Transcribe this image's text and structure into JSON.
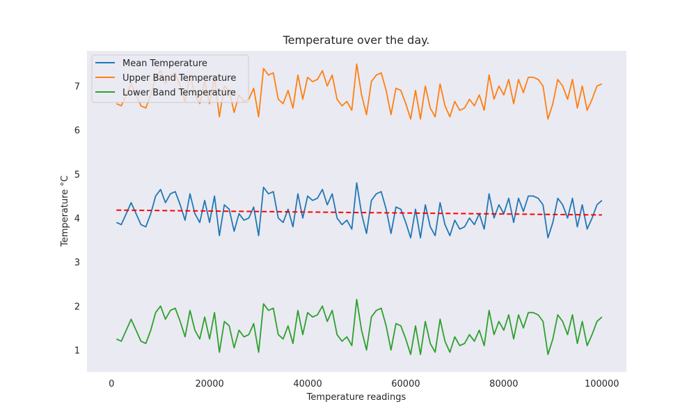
{
  "chart_data": {
    "type": "line",
    "title": "Temperature over the day.",
    "xlabel": "Temperature readings",
    "ylabel": "Temperature °C",
    "xlim": [
      -5000,
      105000
    ],
    "ylim": [
      0.5,
      7.8
    ],
    "xticks": [
      0,
      20000,
      40000,
      60000,
      80000,
      100000
    ],
    "xtick_labels": [
      "0",
      "20000",
      "40000",
      "60000",
      "80000",
      "100000"
    ],
    "yticks": [
      1,
      2,
      3,
      4,
      5,
      6,
      7
    ],
    "ytick_labels": [
      "1",
      "2",
      "3",
      "4",
      "5",
      "6",
      "7"
    ],
    "grid": false,
    "legend_position": "top-left",
    "x": [
      1000,
      2000,
      3000,
      4000,
      5000,
      6000,
      7000,
      8000,
      9000,
      10000,
      11000,
      12000,
      13000,
      14000,
      15000,
      16000,
      17000,
      18000,
      19000,
      20000,
      21000,
      22000,
      23000,
      24000,
      25000,
      26000,
      27000,
      28000,
      29000,
      30000,
      31000,
      32000,
      33000,
      34000,
      35000,
      36000,
      37000,
      38000,
      39000,
      40000,
      41000,
      42000,
      43000,
      44000,
      45000,
      46000,
      47000,
      48000,
      49000,
      50000,
      51000,
      52000,
      53000,
      54000,
      55000,
      56000,
      57000,
      58000,
      59000,
      60000,
      61000,
      62000,
      63000,
      64000,
      65000,
      66000,
      67000,
      68000,
      69000,
      70000,
      71000,
      72000,
      73000,
      74000,
      75000,
      76000,
      77000,
      78000,
      79000,
      80000,
      81000,
      82000,
      83000,
      84000,
      85000,
      86000,
      87000,
      88000,
      89000,
      90000,
      91000,
      92000,
      93000,
      94000,
      95000,
      96000,
      97000,
      98000,
      99000,
      100000
    ],
    "series": [
      {
        "name": "Mean Temperature",
        "color": "#1f77b4",
        "values": [
          3.9,
          3.85,
          4.1,
          4.35,
          4.1,
          3.85,
          3.8,
          4.1,
          4.5,
          4.65,
          4.35,
          4.55,
          4.6,
          4.3,
          3.95,
          4.55,
          4.1,
          3.9,
          4.4,
          3.9,
          4.5,
          3.6,
          4.3,
          4.2,
          3.7,
          4.1,
          3.95,
          4.0,
          4.25,
          3.6,
          4.7,
          4.55,
          4.6,
          4.0,
          3.9,
          4.2,
          3.8,
          4.55,
          4.0,
          4.5,
          4.4,
          4.45,
          4.65,
          4.3,
          4.55,
          4.0,
          3.85,
          3.95,
          3.75,
          4.8,
          4.1,
          3.65,
          4.4,
          4.55,
          4.6,
          4.2,
          3.65,
          4.25,
          4.2,
          3.9,
          3.55,
          4.2,
          3.55,
          4.3,
          3.8,
          3.6,
          4.35,
          3.85,
          3.6,
          3.95,
          3.75,
          3.8,
          4.0,
          3.85,
          4.1,
          3.75,
          4.55,
          4.0,
          4.3,
          4.1,
          4.45,
          3.9,
          4.45,
          4.15,
          4.5,
          4.5,
          4.45,
          4.3,
          3.55,
          3.9,
          4.45,
          4.3,
          4.0,
          4.45,
          3.8,
          4.3,
          3.75,
          4.0,
          4.3,
          4.4
        ]
      },
      {
        "name": "Upper Band Temperature",
        "color": "#ff7f0e",
        "values": [
          6.6,
          6.55,
          6.8,
          7.05,
          6.8,
          6.55,
          6.5,
          6.8,
          7.2,
          7.35,
          7.05,
          7.25,
          7.3,
          7.0,
          6.65,
          7.25,
          6.8,
          6.6,
          7.1,
          6.6,
          7.2,
          6.3,
          7.0,
          6.9,
          6.4,
          6.8,
          6.65,
          6.7,
          6.95,
          6.3,
          7.4,
          7.25,
          7.3,
          6.7,
          6.6,
          6.9,
          6.5,
          7.25,
          6.7,
          7.2,
          7.1,
          7.15,
          7.35,
          7.0,
          7.25,
          6.7,
          6.55,
          6.65,
          6.45,
          7.5,
          6.8,
          6.35,
          7.1,
          7.25,
          7.3,
          6.9,
          6.35,
          6.95,
          6.9,
          6.6,
          6.25,
          6.9,
          6.25,
          7.0,
          6.5,
          6.3,
          7.05,
          6.55,
          6.3,
          6.65,
          6.45,
          6.5,
          6.7,
          6.55,
          6.8,
          6.45,
          7.25,
          6.7,
          7.0,
          6.8,
          7.15,
          6.6,
          7.15,
          6.85,
          7.2,
          7.2,
          7.15,
          7.0,
          6.25,
          6.6,
          7.15,
          7.0,
          6.7,
          7.15,
          6.5,
          7.0,
          6.45,
          6.7,
          7.0,
          7.05
        ]
      },
      {
        "name": "Lower Band Temperature",
        "color": "#2ca02c",
        "values": [
          1.25,
          1.2,
          1.45,
          1.7,
          1.45,
          1.2,
          1.15,
          1.45,
          1.85,
          2.0,
          1.7,
          1.9,
          1.95,
          1.65,
          1.3,
          1.9,
          1.45,
          1.25,
          1.75,
          1.25,
          1.85,
          0.95,
          1.65,
          1.55,
          1.05,
          1.45,
          1.3,
          1.35,
          1.6,
          0.95,
          2.05,
          1.9,
          1.95,
          1.35,
          1.25,
          1.55,
          1.15,
          1.9,
          1.35,
          1.85,
          1.75,
          1.8,
          2.0,
          1.65,
          1.9,
          1.35,
          1.2,
          1.3,
          1.1,
          2.15,
          1.45,
          1.0,
          1.75,
          1.9,
          1.95,
          1.55,
          1.0,
          1.6,
          1.55,
          1.25,
          0.9,
          1.55,
          0.9,
          1.65,
          1.15,
          0.95,
          1.7,
          1.2,
          0.95,
          1.3,
          1.1,
          1.15,
          1.35,
          1.2,
          1.45,
          1.1,
          1.9,
          1.35,
          1.65,
          1.45,
          1.8,
          1.25,
          1.8,
          1.5,
          1.85,
          1.85,
          1.8,
          1.65,
          0.9,
          1.25,
          1.8,
          1.65,
          1.35,
          1.8,
          1.15,
          1.65,
          1.1,
          1.35,
          1.65,
          1.75
        ]
      }
    ],
    "trendline": {
      "color": "#ff0000",
      "style": "dashed",
      "x": [
        1000,
        100000
      ],
      "y": [
        4.18,
        4.07
      ]
    }
  }
}
